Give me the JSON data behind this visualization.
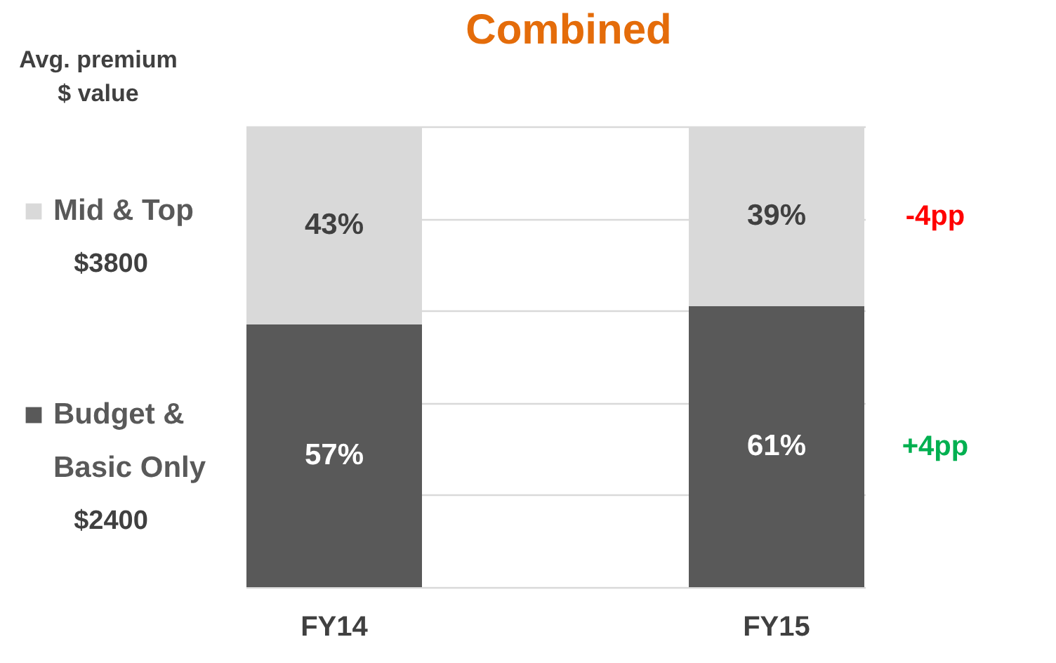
{
  "chart_data": {
    "type": "bar",
    "title": "Combined",
    "legend_title": "Avg. premium $ value",
    "categories": [
      "FY14",
      "FY15"
    ],
    "stacked": true,
    "legend": "left",
    "grid": "y",
    "tick_labels": "x",
    "ylim": [
      0,
      100
    ],
    "yticks": [
      {
        "value": 0,
        "label": null
      },
      {
        "value": 20,
        "label": null
      },
      {
        "value": 40,
        "label": null
      },
      {
        "value": 60,
        "label": null
      },
      {
        "value": 80,
        "label": null
      },
      {
        "value": 100,
        "label": null
      }
    ],
    "series": [
      {
        "name": "Budget & Basic Only",
        "color": "#595959",
        "values": [
          57,
          61
        ],
        "value_labels": [
          "57%",
          "61%"
        ]
      },
      {
        "name": "Mid & Top",
        "color": "#d9d9d9",
        "values": [
          43,
          39
        ],
        "value_labels": [
          "43%",
          "39%"
        ]
      }
    ],
    "annotations": [
      "$2400",
      "+4pp",
      "$3800",
      "-4pp"
    ]
  }
}
